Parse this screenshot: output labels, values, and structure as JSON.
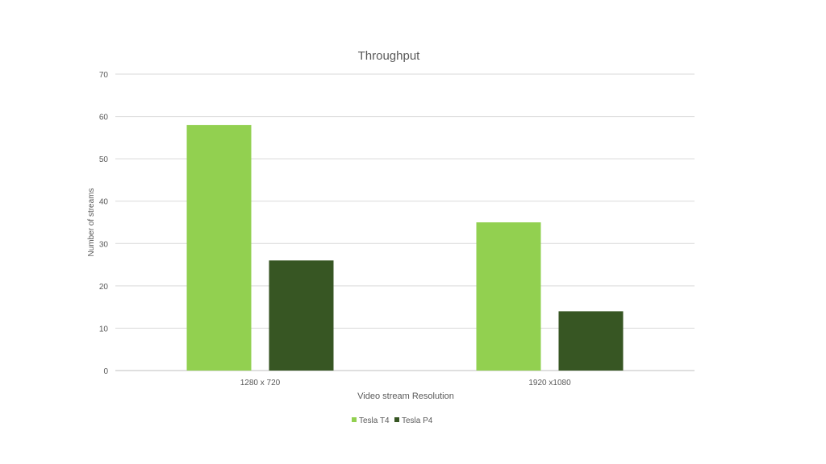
{
  "chart_data": {
    "type": "bar",
    "title": "Throughput",
    "xlabel": "Video stream Resolution",
    "ylabel": "Number of streams",
    "categories": [
      "1280 x 720",
      "1920 x1080"
    ],
    "series": [
      {
        "name": "Tesla T4",
        "values": [
          58,
          35
        ],
        "color": "#92d050"
      },
      {
        "name": "Tesla P4",
        "values": [
          26,
          14
        ],
        "color": "#375623"
      }
    ],
    "ylim": [
      0,
      70
    ],
    "yticks": [
      0,
      10,
      20,
      30,
      40,
      50,
      60,
      70
    ],
    "grid": true,
    "legend": "bottom"
  }
}
